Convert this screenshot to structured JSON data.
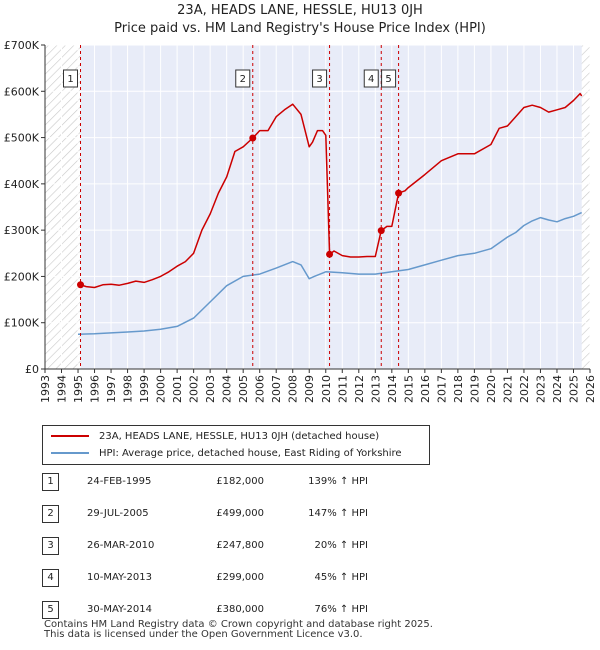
{
  "title_line1": "23A, HEADS LANE, HESSLE, HU13 0JH",
  "title_line2": "Price paid vs. HM Land Registry's House Price Index (HPI)",
  "colors": {
    "property": "#cc0000",
    "hpi": "#6699cc",
    "shade": "#e8ecf8",
    "grid": "#ffffff"
  },
  "chart_data": {
    "type": "line",
    "title": "23A, HEADS LANE, HESSLE, HU13 0JH — Price paid vs. HM Land Registry's House Price Index (HPI)",
    "xlim": [
      1993,
      2026
    ],
    "ylim": [
      0,
      700000
    ],
    "yticks": [
      {
        "value": 0,
        "label": "£0"
      },
      {
        "value": 100000,
        "label": "£100K"
      },
      {
        "value": 200000,
        "label": "£200K"
      },
      {
        "value": 300000,
        "label": "£300K"
      },
      {
        "value": 400000,
        "label": "£400K"
      },
      {
        "value": 500000,
        "label": "£500K"
      },
      {
        "value": 600000,
        "label": "£600K"
      },
      {
        "value": 700000,
        "label": "£700K"
      }
    ],
    "xticks": [
      "1993",
      "1994",
      "1995",
      "1996",
      "1997",
      "1998",
      "1999",
      "2000",
      "2001",
      "2002",
      "2003",
      "2004",
      "2005",
      "2006",
      "2007",
      "2008",
      "2009",
      "2010",
      "2011",
      "2012",
      "2013",
      "2014",
      "2015",
      "2016",
      "2017",
      "2018",
      "2019",
      "2020",
      "2021",
      "2022",
      "2023",
      "2024",
      "2025",
      "2026"
    ],
    "hatch_before": 1995.15,
    "hatch_after": 2025.5,
    "series": [
      {
        "name": "23A, HEADS LANE, HESSLE, HU13 0JH (detached house)",
        "color": "#cc0000",
        "x": [
          1995.15,
          1995.5,
          1996.0,
          1996.5,
          1997.0,
          1997.5,
          1998.0,
          1998.5,
          1999.0,
          1999.5,
          2000.0,
          2000.5,
          2001.0,
          2001.5,
          2002.0,
          2002.5,
          2003.0,
          2003.5,
          2004.0,
          2004.5,
          2005.0,
          2005.58,
          2006.0,
          2006.5,
          2007.0,
          2007.5,
          2008.0,
          2008.5,
          2009.0,
          2009.2,
          2009.5,
          2009.8,
          2010.0,
          2010.23,
          2010.5,
          2011.0,
          2011.5,
          2012.0,
          2012.5,
          2013.0,
          2013.36,
          2013.7,
          2014.0,
          2014.41,
          2014.8,
          2015.0,
          2016.0,
          2017.0,
          2018.0,
          2019.0,
          2020.0,
          2020.5,
          2021.0,
          2021.5,
          2022.0,
          2022.5,
          2023.0,
          2023.5,
          2024.0,
          2024.5,
          2025.0,
          2025.4,
          2025.5
        ],
        "y": [
          182000,
          178000,
          176000,
          182000,
          183000,
          181000,
          185000,
          190000,
          187000,
          193000,
          200000,
          210000,
          222000,
          232000,
          250000,
          300000,
          335000,
          380000,
          415000,
          470000,
          480000,
          499000,
          515000,
          515000,
          545000,
          560000,
          572000,
          550000,
          480000,
          490000,
          515000,
          515000,
          505000,
          247800,
          255000,
          245000,
          242000,
          242000,
          243000,
          243000,
          299000,
          308000,
          308000,
          380000,
          385000,
          392000,
          420000,
          450000,
          465000,
          465000,
          485000,
          520000,
          525000,
          545000,
          565000,
          570000,
          565000,
          555000,
          560000,
          565000,
          580000,
          595000,
          590000
        ]
      },
      {
        "name": "HPI: Average price, detached house, East Riding of Yorkshire",
        "color": "#6699cc",
        "x": [
          1995.0,
          1996.0,
          1997.0,
          1998.0,
          1999.0,
          2000.0,
          2001.0,
          2002.0,
          2003.0,
          2004.0,
          2005.0,
          2006.0,
          2007.0,
          2008.0,
          2008.5,
          2009.0,
          2009.3,
          2010.0,
          2011.0,
          2012.0,
          2013.0,
          2014.0,
          2015.0,
          2016.0,
          2017.0,
          2018.0,
          2019.0,
          2020.0,
          2021.0,
          2021.5,
          2022.0,
          2022.5,
          2023.0,
          2023.5,
          2024.0,
          2024.5,
          2025.0,
          2025.5
        ],
        "y": [
          75000,
          76000,
          78000,
          80000,
          82000,
          86000,
          92000,
          110000,
          145000,
          180000,
          200000,
          205000,
          218000,
          232000,
          225000,
          195000,
          200000,
          210000,
          208000,
          205000,
          205000,
          210000,
          215000,
          225000,
          235000,
          245000,
          250000,
          260000,
          285000,
          295000,
          310000,
          320000,
          327000,
          322000,
          318000,
          325000,
          330000,
          338000
        ]
      }
    ],
    "sales": [
      {
        "num": "1",
        "x": 1995.15,
        "y": 182000,
        "date": "24-FEB-1995",
        "price": "£182,000",
        "hpi": "139% ↑ HPI"
      },
      {
        "num": "2",
        "x": 2005.58,
        "y": 499000,
        "date": "29-JUL-2005",
        "price": "£499,000",
        "hpi": "147% ↑ HPI"
      },
      {
        "num": "3",
        "x": 2010.23,
        "y": 247800,
        "date": "26-MAR-2010",
        "price": "£247,800",
        "hpi": "20% ↑ HPI"
      },
      {
        "num": "4",
        "x": 2013.36,
        "y": 299000,
        "date": "10-MAY-2013",
        "price": "£299,000",
        "hpi": "45% ↑ HPI"
      },
      {
        "num": "5",
        "x": 2014.41,
        "y": 380000,
        "date": "30-MAY-2014",
        "price": "£380,000",
        "hpi": "76% ↑ HPI"
      }
    ]
  },
  "legend": {
    "property_label": "23A, HEADS LANE, HESSLE, HU13 0JH (detached house)",
    "hpi_label": "HPI: Average price, detached house, East Riding of Yorkshire"
  },
  "footer_line1": "Contains HM Land Registry data © Crown copyright and database right 2025.",
  "footer_line2": "This data is licensed under the Open Government Licence v3.0."
}
